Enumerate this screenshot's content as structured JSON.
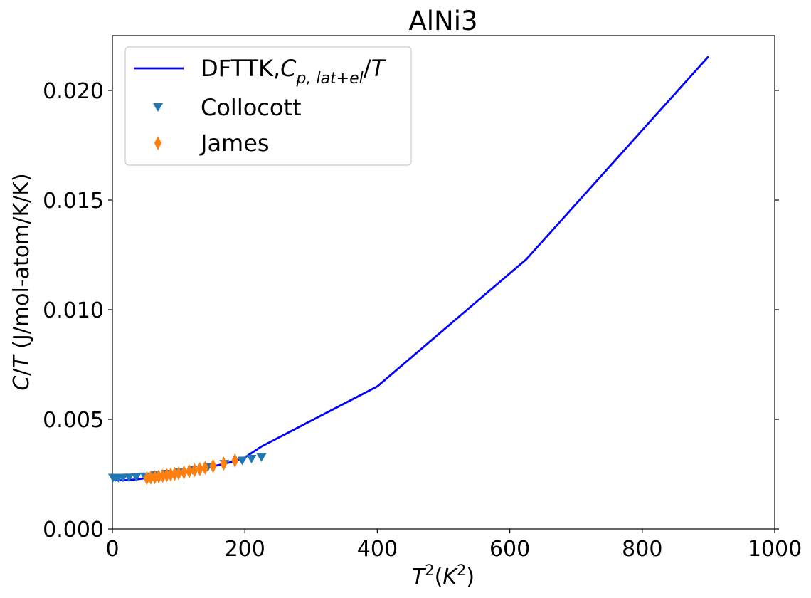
{
  "chart_data": {
    "type": "line",
    "title": "AlNi3",
    "xlabel": "T^2(K^2)",
    "ylabel": "C/T (J/mol-atom/K/K)",
    "xlim": [
      0,
      1000
    ],
    "ylim": [
      0,
      0.0225
    ],
    "xticks": [
      0,
      200,
      400,
      600,
      800,
      1000
    ],
    "xtick_labels": [
      "0",
      "200",
      "400",
      "600",
      "800",
      "1000"
    ],
    "yticks": [
      0,
      0.005,
      0.01,
      0.015,
      0.02
    ],
    "ytick_labels": [
      "0.000",
      "0.005",
      "0.010",
      "0.015",
      "0.020"
    ],
    "grid": false,
    "legend_position": "top-left",
    "series": [
      {
        "name": "DFTTK,C_{p,lat+el}/T",
        "kind": "line",
        "color": "#0000ff",
        "x": [
          0,
          4,
          9,
          16,
          25,
          36,
          49,
          64,
          81,
          100,
          121,
          144,
          169,
          196,
          225,
          400,
          625,
          900
        ],
        "y": [
          0.00225,
          0.00223,
          0.00222,
          0.00222,
          0.00223,
          0.00226,
          0.00231,
          0.00237,
          0.00245,
          0.00255,
          0.00266,
          0.0028,
          0.00297,
          0.00318,
          0.00376,
          0.0065,
          0.0123,
          0.02155
        ]
      },
      {
        "name": "Collocott",
        "kind": "scatter",
        "marker": "triangle-down",
        "color": "#1f77b4",
        "x": [
          1,
          4,
          9,
          16,
          25,
          36,
          49,
          64,
          81,
          100,
          121,
          144,
          169,
          196,
          210,
          225
        ],
        "y": [
          0.00232,
          0.00232,
          0.00231,
          0.00232,
          0.00233,
          0.00235,
          0.00238,
          0.00243,
          0.0025,
          0.00258,
          0.00268,
          0.0028,
          0.00295,
          0.0031,
          0.00318,
          0.00325
        ]
      },
      {
        "name": "James",
        "kind": "scatter",
        "marker": "thin-diamond",
        "color": "#ff7f0e",
        "x": [
          52,
          58,
          64,
          70,
          76,
          82,
          88,
          94,
          100,
          108,
          116,
          124,
          132,
          140,
          152,
          168,
          185
        ],
        "y": [
          0.00232,
          0.00234,
          0.00236,
          0.00239,
          0.00242,
          0.00245,
          0.00248,
          0.00251,
          0.00254,
          0.00258,
          0.00263,
          0.00268,
          0.00273,
          0.00279,
          0.00287,
          0.00298,
          0.00312
        ]
      }
    ]
  }
}
